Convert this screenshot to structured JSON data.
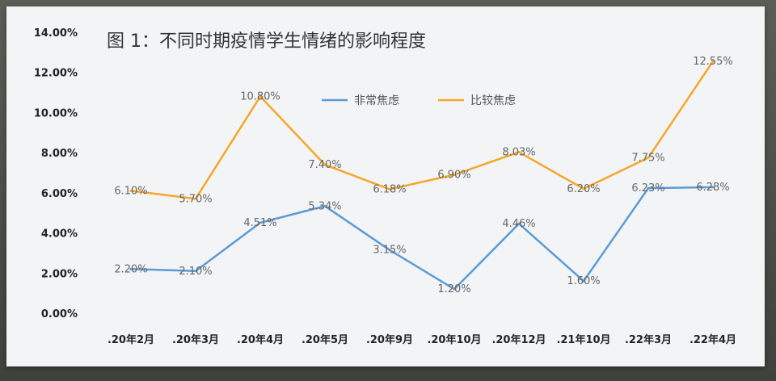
{
  "chart_data": {
    "type": "line",
    "title": "图 1：不同时期疫情学生情绪的影响程度",
    "categories": [
      ".20年2月",
      ".20年3月",
      ".20年4月",
      ".20年5月",
      ".20年9月",
      ".20年10月",
      ".20年12月",
      ".21年10月",
      ".22年3月",
      ".22年4月"
    ],
    "series": [
      {
        "name": "非常焦虑",
        "color": "#5b9bd5",
        "values": [
          2.2,
          2.1,
          4.51,
          5.34,
          3.15,
          1.2,
          4.46,
          1.6,
          6.23,
          6.28
        ],
        "labels": [
          "2.20%",
          "2.10%",
          "4.51%",
          "5.34%",
          "3.15%",
          "1.20%",
          "4.46%",
          "1.60%",
          "6.23%",
          "6.28%"
        ]
      },
      {
        "name": "比较焦虑",
        "color": "#f4a72c",
        "values": [
          6.1,
          5.7,
          10.8,
          7.4,
          6.18,
          6.9,
          8.03,
          6.2,
          7.75,
          12.55
        ],
        "labels": [
          "6.10%",
          "5.70%",
          "10.80%",
          "7.40%",
          "6.18%",
          "6.90%",
          "8.03%",
          "6.20%",
          "7.75%",
          "12.55%"
        ]
      }
    ],
    "yticks": [
      "0.00%",
      "2.00%",
      "4.00%",
      "6.00%",
      "8.00%",
      "10.00%",
      "12.00%",
      "14.00%"
    ],
    "ylim": [
      0,
      14
    ],
    "grid": false,
    "legend": "top-center"
  }
}
